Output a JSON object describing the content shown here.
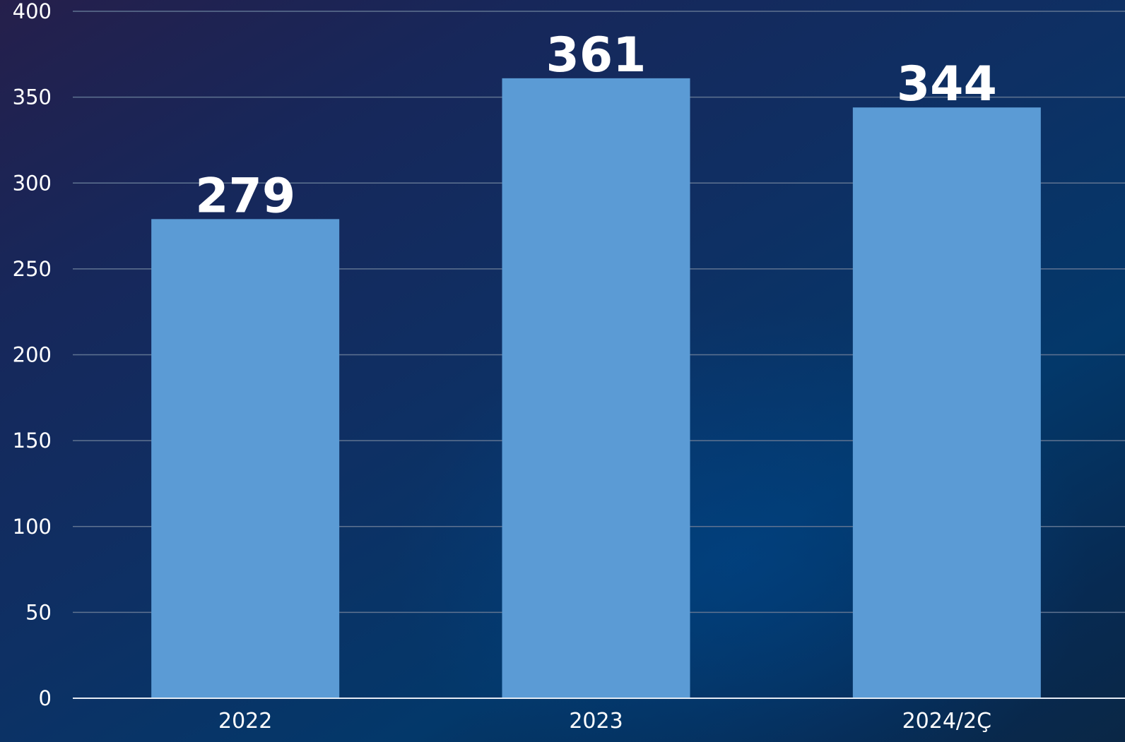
{
  "chart_data": {
    "type": "bar",
    "categories": [
      "2022",
      "2023",
      "2024/2Ç"
    ],
    "values": [
      279,
      361,
      344
    ],
    "data_labels": [
      "279",
      "361",
      "344"
    ],
    "title": "",
    "xlabel": "",
    "ylabel": "",
    "ylim": [
      0,
      400
    ],
    "yticks": [
      0,
      50,
      100,
      150,
      200,
      250,
      300,
      350,
      400
    ],
    "grid": true,
    "legend": "none",
    "bar_color": "#5b9bd5",
    "gridline_color": "#5f7391",
    "text_color": "#ffffff"
  }
}
